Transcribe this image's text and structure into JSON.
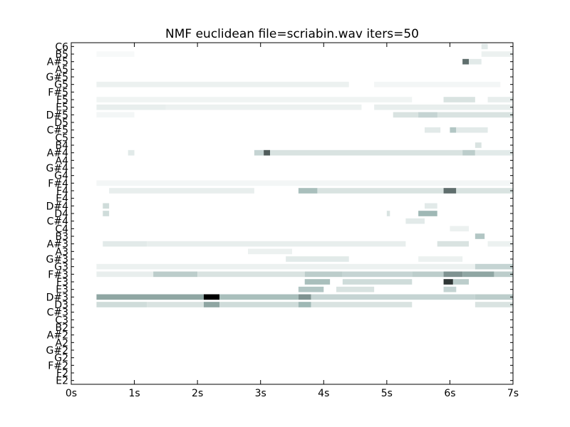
{
  "chart_data": {
    "type": "heatmap",
    "title": "NMF euclidean file=scriabin.wav iters=50",
    "xlabel": "",
    "ylabel": "",
    "xlim": [
      0,
      7
    ],
    "x_ticks": [
      "0s",
      "1s",
      "2s",
      "3s",
      "4s",
      "5s",
      "6s",
      "7s"
    ],
    "x_tick_values": [
      0,
      1,
      2,
      3,
      4,
      5,
      6,
      7
    ],
    "y_ticks": [
      "E2",
      "F2",
      "F#2",
      "G2",
      "G#2",
      "A2",
      "A#2",
      "B2",
      "C3",
      "C#3",
      "D3",
      "D#3",
      "E3",
      "F3",
      "F#3",
      "G3",
      "G#3",
      "A3",
      "A#3",
      "B3",
      "C4",
      "C#4",
      "D4",
      "D#4",
      "E4",
      "F4",
      "F#4",
      "G4",
      "G#4",
      "A4",
      "A#4",
      "B4",
      "C5",
      "C#5",
      "D5",
      "D#5",
      "E5",
      "F5",
      "F#5",
      "G5",
      "G#5",
      "A5",
      "A#5",
      "B5",
      "C6"
    ],
    "colormap": {
      "low": "#ffffff",
      "mid": "#9fb8b5",
      "high": "#000000"
    },
    "grid": false,
    "legend": "none",
    "activations": [
      {
        "note": "D#3",
        "segments": [
          [
            0.4,
            2.1,
            0.55
          ],
          [
            2.1,
            2.35,
            1.0
          ],
          [
            2.35,
            3.6,
            0.45
          ],
          [
            3.6,
            3.8,
            0.6
          ],
          [
            3.8,
            6.4,
            0.3
          ],
          [
            6.4,
            7.0,
            0.35
          ]
        ]
      },
      {
        "note": "D3",
        "segments": [
          [
            0.4,
            1.2,
            0.25
          ],
          [
            1.2,
            2.1,
            0.2
          ],
          [
            2.1,
            2.35,
            0.55
          ],
          [
            2.35,
            3.6,
            0.25
          ],
          [
            3.6,
            3.8,
            0.5
          ],
          [
            3.8,
            5.4,
            0.2
          ],
          [
            6.4,
            7.0,
            0.2
          ]
        ]
      },
      {
        "note": "E3",
        "segments": [
          [
            3.6,
            4.0,
            0.4
          ],
          [
            4.2,
            4.8,
            0.2
          ],
          [
            5.9,
            6.1,
            0.3
          ]
        ]
      },
      {
        "note": "F3",
        "segments": [
          [
            3.7,
            4.1,
            0.45
          ],
          [
            4.3,
            5.4,
            0.25
          ],
          [
            5.9,
            6.05,
            0.85
          ],
          [
            6.05,
            6.3,
            0.35
          ]
        ]
      },
      {
        "note": "F#3",
        "segments": [
          [
            0.4,
            1.3,
            0.12
          ],
          [
            1.3,
            2.0,
            0.35
          ],
          [
            2.0,
            3.7,
            0.2
          ],
          [
            3.7,
            4.3,
            0.35
          ],
          [
            4.3,
            5.4,
            0.3
          ],
          [
            5.4,
            5.9,
            0.35
          ],
          [
            5.9,
            6.2,
            0.6
          ],
          [
            6.2,
            6.7,
            0.55
          ],
          [
            6.7,
            7.0,
            0.35
          ]
        ]
      },
      {
        "note": "G3",
        "segments": [
          [
            0.4,
            6.4,
            0.1
          ],
          [
            6.4,
            7.0,
            0.3
          ]
        ]
      },
      {
        "note": "G#3",
        "segments": [
          [
            3.4,
            4.4,
            0.15
          ],
          [
            5.5,
            6.2,
            0.1
          ]
        ]
      },
      {
        "note": "A3",
        "segments": [
          [
            2.8,
            3.5,
            0.1
          ]
        ]
      },
      {
        "note": "A#3",
        "segments": [
          [
            0.5,
            1.2,
            0.15
          ],
          [
            1.2,
            5.3,
            0.12
          ],
          [
            5.8,
            6.3,
            0.2
          ],
          [
            6.6,
            7.0,
            0.1
          ]
        ]
      },
      {
        "note": "B3",
        "segments": [
          [
            6.4,
            6.55,
            0.4
          ]
        ]
      },
      {
        "note": "C4",
        "segments": [
          [
            6.0,
            6.3,
            0.1
          ]
        ]
      },
      {
        "note": "C#4",
        "segments": [
          [
            5.3,
            5.6,
            0.15
          ]
        ]
      },
      {
        "note": "D4",
        "segments": [
          [
            0.5,
            0.6,
            0.25
          ],
          [
            5.0,
            5.05,
            0.2
          ],
          [
            5.5,
            5.8,
            0.5
          ]
        ]
      },
      {
        "note": "D#4",
        "segments": [
          [
            0.5,
            0.6,
            0.25
          ],
          [
            5.6,
            5.8,
            0.15
          ]
        ]
      },
      {
        "note": "F4",
        "segments": [
          [
            0.6,
            2.9,
            0.12
          ],
          [
            3.6,
            3.9,
            0.45
          ],
          [
            3.9,
            5.9,
            0.2
          ],
          [
            5.9,
            6.1,
            0.7
          ],
          [
            6.1,
            7.0,
            0.2
          ]
        ]
      },
      {
        "note": "F#4",
        "segments": [
          [
            0.4,
            7.0,
            0.06
          ]
        ]
      },
      {
        "note": "A#4",
        "segments": [
          [
            0.9,
            1.0,
            0.15
          ],
          [
            2.9,
            3.05,
            0.3
          ],
          [
            3.05,
            3.15,
            0.75
          ],
          [
            3.15,
            6.2,
            0.2
          ],
          [
            6.2,
            6.4,
            0.35
          ],
          [
            6.4,
            7.0,
            0.15
          ]
        ]
      },
      {
        "note": "B4",
        "segments": [
          [
            6.4,
            6.5,
            0.2
          ]
        ]
      },
      {
        "note": "C#5",
        "segments": [
          [
            5.6,
            5.85,
            0.15
          ],
          [
            6.0,
            6.1,
            0.4
          ],
          [
            6.1,
            6.6,
            0.15
          ]
        ]
      },
      {
        "note": "D#5",
        "segments": [
          [
            0.4,
            1.0,
            0.06
          ],
          [
            5.1,
            7.0,
            0.2
          ],
          [
            5.5,
            5.8,
            0.3
          ]
        ]
      },
      {
        "note": "E5",
        "segments": [
          [
            0.4,
            1.5,
            0.12
          ],
          [
            1.5,
            4.6,
            0.1
          ],
          [
            4.8,
            7.0,
            0.12
          ]
        ]
      },
      {
        "note": "F5",
        "segments": [
          [
            0.4,
            5.4,
            0.08
          ],
          [
            5.9,
            6.4,
            0.2
          ],
          [
            6.6,
            7.0,
            0.12
          ]
        ]
      },
      {
        "note": "G5",
        "segments": [
          [
            0.4,
            4.4,
            0.1
          ],
          [
            4.8,
            6.8,
            0.06
          ]
        ]
      },
      {
        "note": "A#5",
        "segments": [
          [
            6.2,
            6.3,
            0.7
          ],
          [
            6.3,
            6.5,
            0.15
          ]
        ]
      },
      {
        "note": "B5",
        "segments": [
          [
            0.4,
            1.0,
            0.04
          ],
          [
            6.5,
            7.0,
            0.1
          ]
        ]
      },
      {
        "note": "C6",
        "segments": [
          [
            6.5,
            6.6,
            0.15
          ]
        ]
      }
    ]
  }
}
